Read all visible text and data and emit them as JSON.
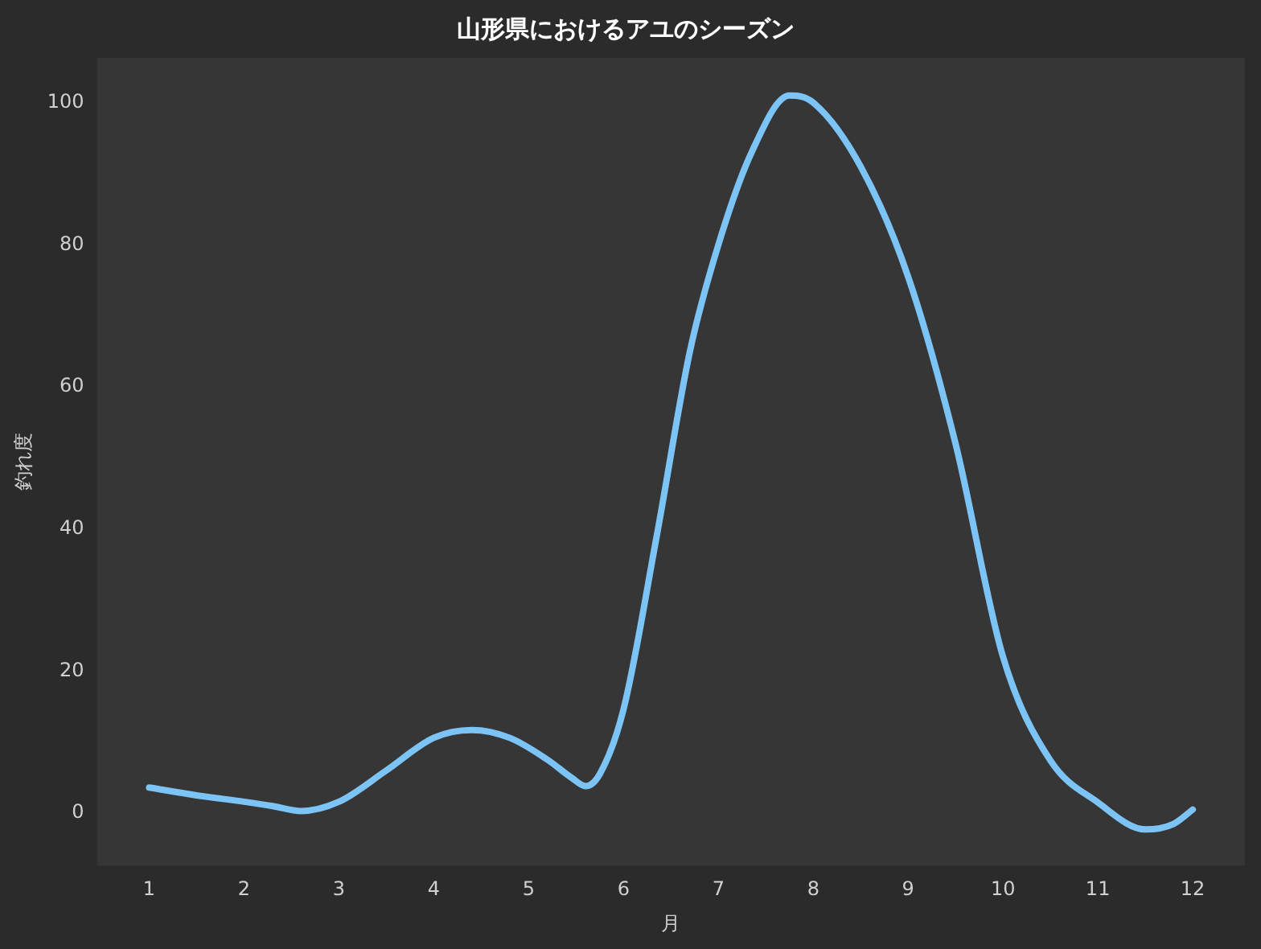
{
  "chart_data": {
    "type": "line",
    "title": "山形県におけるアユのシーズン",
    "xlabel": "月",
    "ylabel": "釣れ度",
    "x": [
      1,
      1.5,
      2,
      2.3,
      2.6,
      3,
      3.5,
      4,
      4.4,
      4.8,
      5.2,
      5.45,
      5.6,
      5.75,
      6,
      6.35,
      6.7,
      7,
      7.35,
      7.75,
      8,
      8.5,
      9,
      9.5,
      10,
      10.5,
      11,
      11.5,
      11.8,
      12
    ],
    "series": [
      {
        "color": "#7cc4f5",
        "values": [
          3.6,
          2.5,
          1.6,
          1,
          0.3,
          1.6,
          6,
          10.6,
          11.7,
          10.6,
          7.5,
          5,
          3.8,
          5.5,
          14.6,
          39,
          65,
          80,
          93,
          101,
          100,
          91,
          75.5,
          52,
          22,
          7.4,
          1.5,
          -2.3,
          -1.5,
          0.5
        ]
      }
    ],
    "xlim": [
      0.45,
      12.55
    ],
    "ylim": [
      -7.4,
      106.3
    ],
    "xticks": [
      1,
      2,
      3,
      4,
      5,
      6,
      7,
      8,
      9,
      10,
      11,
      12
    ],
    "yticks": [
      0,
      20,
      40,
      60,
      80,
      100
    ],
    "grid": false,
    "legend": false,
    "marker": "none",
    "line_style": "solid"
  }
}
